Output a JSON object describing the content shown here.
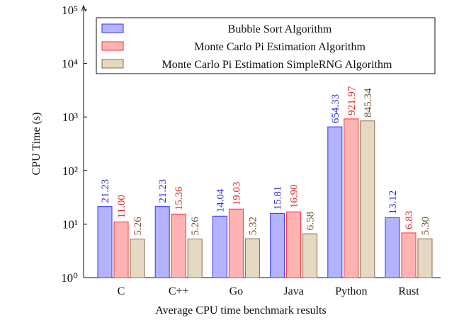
{
  "chart_data": {
    "type": "bar",
    "x_label": "Average CPU time benchmark results",
    "y_label": "CPU Time (s)",
    "categories": [
      "C",
      "C++",
      "Go",
      "Java",
      "Python",
      "Rust"
    ],
    "log_scale": true,
    "ylim": [
      1,
      100000
    ],
    "yticks": [
      {
        "value": 1,
        "label": "10⁰"
      },
      {
        "value": 10,
        "label": "10¹"
      },
      {
        "value": 100,
        "label": "10²"
      },
      {
        "value": 1000,
        "label": "10³"
      },
      {
        "value": 10000,
        "label": "10⁴"
      },
      {
        "value": 100000,
        "label": "10⁵"
      }
    ],
    "legend": "top",
    "series": [
      {
        "name": "Bubble Sort Algorithm",
        "color": "#b3b3ff",
        "values": [
          21.23,
          21.23,
          14.04,
          15.81,
          654.33,
          13.12
        ],
        "value_labels": [
          "21.23",
          "21.23",
          "14.04",
          "15.81",
          "654.33",
          "13.12"
        ]
      },
      {
        "name": "Monte Carlo Pi Estimation Algorithm",
        "color": "#ffb3b3",
        "values": [
          11,
          15.36,
          19.03,
          16.9,
          921.97,
          6.83
        ],
        "value_labels": [
          "11.00",
          "15.36",
          "19.03",
          "16.90",
          "921.97",
          "6.83"
        ]
      },
      {
        "name": "Monte Carlo Pi Estimation SimpleRNG Algorithm",
        "color": "#e6d9c3",
        "values": [
          5.26,
          5.26,
          5.32,
          6.58,
          845.34,
          5.3
        ],
        "value_labels": [
          "5.26",
          "5.26",
          "5.32",
          "6.58",
          "845.34",
          "5.30"
        ]
      }
    ]
  }
}
